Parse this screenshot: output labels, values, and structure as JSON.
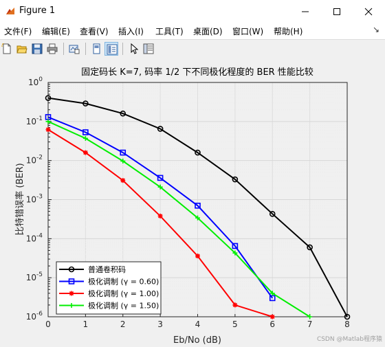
{
  "window": {
    "title": "Figure 1",
    "icon": "matlab-figure-icon",
    "controls": [
      "minimize-icon",
      "maximize-icon",
      "close-icon"
    ]
  },
  "menu": {
    "items": [
      "文件(F)",
      "编辑(E)",
      "查看(V)",
      "插入(I)",
      "工具(T)",
      "桌面(D)",
      "窗口(W)",
      "帮助(H)"
    ],
    "pin_glyph": "↘"
  },
  "toolbar": {
    "icons": [
      "new-figure-icon",
      "open-file-icon",
      "save-icon",
      "print-icon",
      "link-plot-icon",
      "hide-plot-tools-icon",
      "show-plot-tools-icon",
      "edit-plot-arrow-icon",
      "property-inspector-icon"
    ]
  },
  "chart_data": {
    "type": "line",
    "title": "固定码长 K=7, 码率 1/2 下不同极化程度的 BER 性能比较",
    "xlabel": "Eb/No (dB)",
    "ylabel": "比特错误率 (BER)",
    "xlim": [
      0,
      8
    ],
    "ylim": [
      1e-06,
      1
    ],
    "yscale": "log",
    "x_ticks": [
      "0",
      "1",
      "2",
      "3",
      "4",
      "5",
      "6",
      "7",
      "8"
    ],
    "y_ticks": [
      "10^-6",
      "10^-5",
      "10^-4",
      "10^-3",
      "10^-2",
      "10^-1",
      "10^0"
    ],
    "grid": true,
    "legend_position": "bottom-left",
    "series": [
      {
        "name": "普通卷积码",
        "color": "#000000",
        "marker": "circle",
        "x": [
          0,
          1,
          2,
          3,
          4,
          5,
          6,
          7,
          8
        ],
        "y": [
          0.4,
          0.29,
          0.16,
          0.065,
          0.016,
          0.0033,
          0.00043,
          6e-05,
          1e-06
        ]
      },
      {
        "name": "极化调制 (γ = 0.60)",
        "color": "#0000ff",
        "marker": "square",
        "x": [
          0,
          1,
          2,
          3,
          4,
          5,
          6
        ],
        "y": [
          0.13,
          0.053,
          0.016,
          0.0036,
          0.0007,
          6.5e-05,
          3e-06
        ]
      },
      {
        "name": "极化调制 (γ = 1.00)",
        "color": "#ff0000",
        "marker": "asterisk",
        "x": [
          0,
          1,
          2,
          3,
          4,
          5,
          6
        ],
        "y": [
          0.062,
          0.016,
          0.0031,
          0.00038,
          3.6e-05,
          2e-06,
          1e-06
        ]
      },
      {
        "name": "极化调制 (γ = 1.50)",
        "color": "#00ee00",
        "marker": "plus",
        "x": [
          0,
          1,
          2,
          3,
          4,
          5,
          6,
          7
        ],
        "y": [
          0.1,
          0.037,
          0.0097,
          0.0021,
          0.00034,
          4.3e-05,
          4e-06,
          1e-06
        ]
      }
    ]
  },
  "watermark": "CSDN @Matlab程序猿"
}
